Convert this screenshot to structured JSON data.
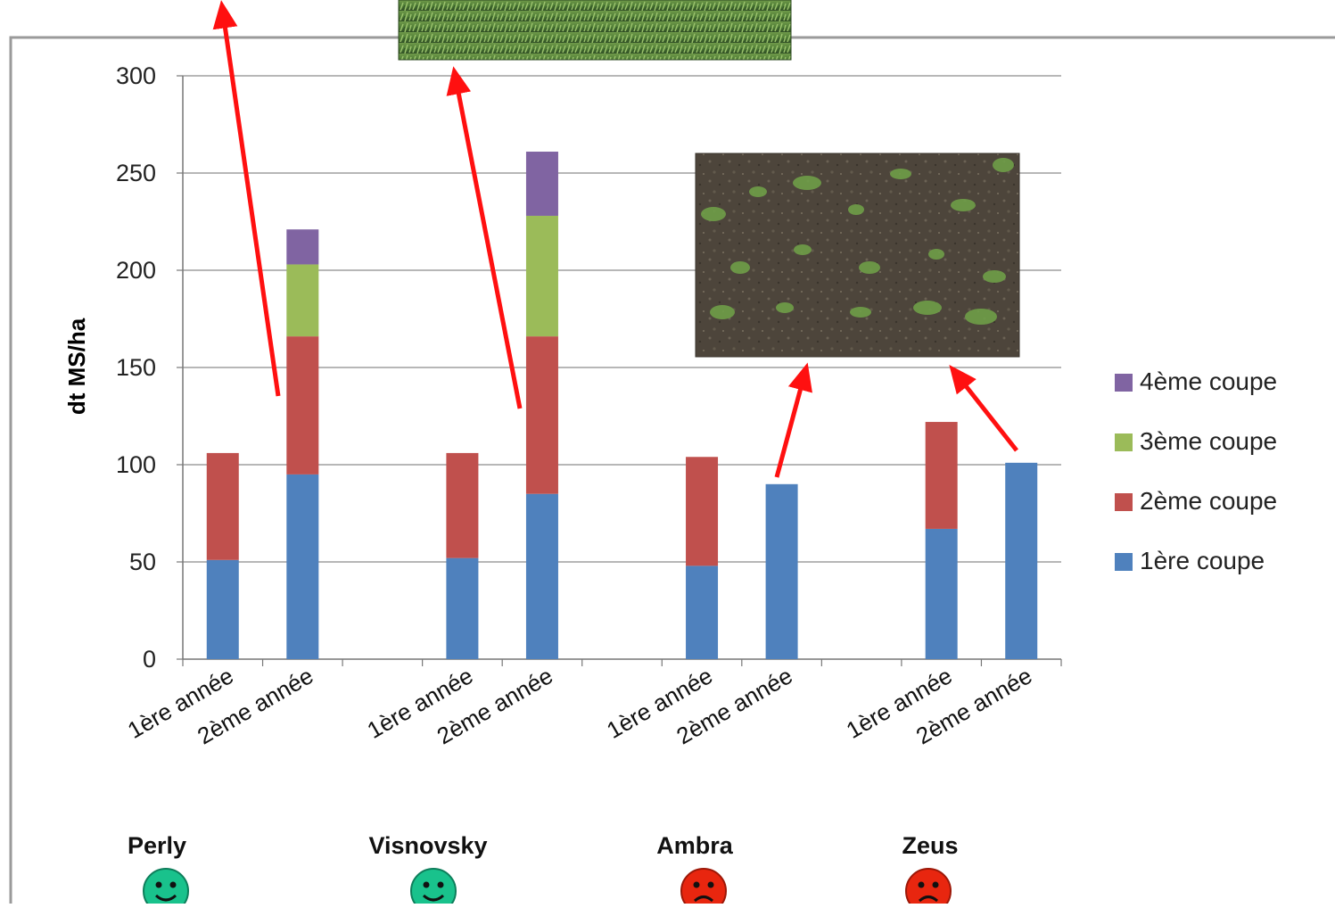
{
  "colors": {
    "series": [
      "#4F81BD",
      "#C0504D",
      "#9BBB59",
      "#8064A2"
    ],
    "arrow": "#ff1010",
    "grid": "#8c8c8c",
    "happy_face": "#19c28c",
    "sad_face": "#e8260f"
  },
  "chart_data": {
    "type": "bar",
    "stacked": true,
    "ylabel": "dt MS/ha",
    "ylim": [
      0,
      300
    ],
    "yticks": [
      0,
      50,
      100,
      150,
      200,
      250,
      300
    ],
    "grid": true,
    "legend_position": "right",
    "categories": [
      "1ère année",
      "2ème année",
      "1ère année",
      "2ème année",
      "1ère année",
      "2ème année",
      "1ère année",
      "2ème année"
    ],
    "groups": [
      {
        "name": "Perly",
        "face": "happy"
      },
      {
        "name": "Visnovsky",
        "face": "happy"
      },
      {
        "name": "Ambra",
        "face": "sad"
      },
      {
        "name": "Zeus",
        "face": "sad"
      }
    ],
    "series": [
      {
        "name": "1ère coupe",
        "values": [
          51,
          95,
          52,
          85,
          48,
          90,
          67,
          101
        ]
      },
      {
        "name": "2ème coupe",
        "values": [
          55,
          71,
          54,
          81,
          56,
          0,
          55,
          0
        ]
      },
      {
        "name": "3ème coupe",
        "values": [
          0,
          37,
          0,
          62,
          0,
          0,
          0,
          0
        ]
      },
      {
        "name": "4ème coupe",
        "values": [
          0,
          18,
          0,
          33,
          0,
          0,
          0,
          0
        ]
      }
    ],
    "legend_order": [
      3,
      2,
      1,
      0
    ]
  },
  "photos": [
    {
      "name": "field-photo-dense-crop",
      "subject": "dense green forage crop"
    },
    {
      "name": "field-photo-sparse-crop",
      "subject": "sparse crop on bare soil"
    }
  ],
  "icons": [
    "smiley-happy-icon",
    "smiley-sad-icon"
  ]
}
